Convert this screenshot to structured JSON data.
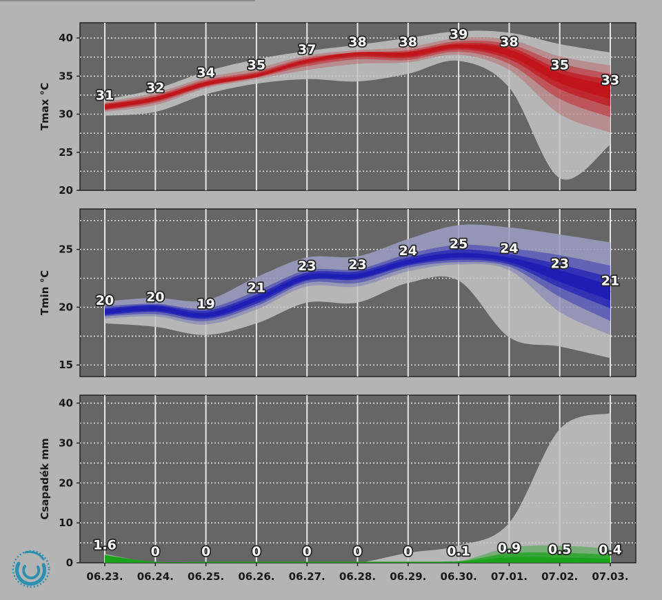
{
  "colors": {
    "background": "#b4b4b4",
    "panel": "#666666",
    "tmax": "#c0151b",
    "tmin": "#1e1eb4",
    "precip": "#1aa31a",
    "ensemble_spread": "#c4c4c4"
  },
  "logo": {
    "icon": "swirl-logo-icon",
    "color": "#2a8fb0"
  },
  "chart_data": [
    {
      "type": "area",
      "ylabel": "Tmax °C",
      "categories": [
        "06.23.",
        "06.24.",
        "06.25.",
        "06.26.",
        "06.27.",
        "06.28.",
        "06.29.",
        "06.30.",
        "07.01.",
        "07.02.",
        "07.03."
      ],
      "ylim": [
        20,
        42
      ],
      "yticks": [
        20,
        25,
        30,
        35,
        40
      ],
      "grid": true,
      "median": [
        31,
        32,
        34,
        35,
        37,
        38,
        38,
        39,
        38,
        35,
        33
      ],
      "labels": [
        "31",
        "32",
        "34",
        "35",
        "37",
        "38",
        "38",
        "39",
        "38",
        "35",
        "33"
      ],
      "bands": [
        {
          "low": [
            29.8,
            30.3,
            32.6,
            34.0,
            34.6,
            34.3,
            35.3,
            37.0,
            33.5,
            21.6,
            26.0
          ],
          "high": [
            31.9,
            33.3,
            35.6,
            37.2,
            38.3,
            39.1,
            40.0,
            40.9,
            40.7,
            39.2,
            38.1
          ]
        },
        {
          "low": [
            30.3,
            31.2,
            33.4,
            34.6,
            35.8,
            36.6,
            36.8,
            37.8,
            35.8,
            30.0,
            27.6
          ],
          "high": [
            31.6,
            32.8,
            34.8,
            36.0,
            37.7,
            38.4,
            38.8,
            40.0,
            39.8,
            37.6,
            36.4
          ]
        },
        {
          "low": [
            30.5,
            31.5,
            33.6,
            34.8,
            36.3,
            37.2,
            37.1,
            38.2,
            36.6,
            32.0,
            29.6
          ],
          "high": [
            31.4,
            32.5,
            34.5,
            35.6,
            37.4,
            38.1,
            38.4,
            39.6,
            39.2,
            36.7,
            35.3
          ]
        },
        {
          "low": [
            30.6,
            31.7,
            33.7,
            34.9,
            36.6,
            37.5,
            37.4,
            38.5,
            37.2,
            33.3,
            31.0
          ],
          "high": [
            31.3,
            32.3,
            34.3,
            35.4,
            37.2,
            37.9,
            38.2,
            39.3,
            38.8,
            35.9,
            34.5
          ]
        },
        {
          "low": [
            30.7,
            31.8,
            33.8,
            34.95,
            36.8,
            37.7,
            37.6,
            38.7,
            37.6,
            34.1,
            32.0
          ],
          "high": [
            31.2,
            32.2,
            34.2,
            35.2,
            37.1,
            37.8,
            38.0,
            39.1,
            38.5,
            35.4,
            33.8
          ]
        }
      ]
    },
    {
      "type": "area",
      "ylabel": "Tmin °C",
      "categories": [
        "06.23.",
        "06.24.",
        "06.25.",
        "06.26.",
        "06.27.",
        "06.28.",
        "06.29.",
        "06.30.",
        "07.01.",
        "07.02.",
        "07.03."
      ],
      "ylim": [
        14,
        28.5
      ],
      "yticks": [
        15,
        20,
        25
      ],
      "grid": true,
      "median": [
        19.6,
        19.9,
        19.3,
        20.7,
        22.6,
        22.7,
        23.9,
        24.5,
        24.1,
        22.8,
        21.3
      ],
      "labels": [
        "20",
        "20",
        "19",
        "21",
        "23",
        "23",
        "24",
        "25",
        "24",
        "23",
        "21"
      ],
      "bands": [
        {
          "low": [
            18.6,
            18.3,
            17.6,
            18.6,
            20.4,
            20.4,
            22.1,
            22.3,
            17.4,
            16.6,
            15.6
          ],
          "high": [
            20.5,
            20.8,
            20.6,
            22.6,
            24.3,
            24.4,
            25.9,
            27.1,
            26.9,
            26.3,
            25.6
          ]
        },
        {
          "low": [
            19.0,
            19.2,
            18.5,
            19.8,
            21.8,
            21.8,
            23.1,
            23.7,
            23.2,
            19.6,
            17.6
          ]
        },
        {
          "low": [
            19.2,
            19.4,
            18.8,
            20.1,
            22.1,
            22.1,
            23.4,
            23.9,
            23.5,
            20.9,
            18.8
          ],
          "high": [
            20.1,
            20.3,
            19.9,
            21.4,
            23.2,
            23.3,
            24.6,
            25.4,
            25.1,
            24.5,
            23.6
          ]
        },
        {
          "low": [
            19.3,
            19.6,
            19.0,
            20.3,
            22.3,
            22.4,
            23.6,
            24.1,
            23.7,
            21.7,
            19.9
          ],
          "high": [
            19.9,
            20.2,
            19.7,
            21.1,
            23.0,
            23.1,
            24.3,
            25.0,
            24.6,
            23.7,
            22.6
          ]
        },
        {
          "low": [
            19.4,
            19.7,
            19.1,
            20.5,
            22.4,
            22.5,
            23.7,
            24.3,
            23.9,
            22.2,
            20.6
          ],
          "high": [
            19.8,
            20.1,
            19.5,
            20.9,
            22.8,
            22.9,
            24.1,
            24.7,
            24.3,
            23.2,
            21.9
          ]
        }
      ]
    },
    {
      "type": "area",
      "ylabel": "Csapadék mm",
      "categories": [
        "06.23.",
        "06.24.",
        "06.25.",
        "06.26.",
        "06.27.",
        "06.28.",
        "06.29.",
        "06.30.",
        "07.01.",
        "07.02.",
        "07.03."
      ],
      "ylim": [
        0,
        42
      ],
      "yticks": [
        0,
        10,
        20,
        30,
        40
      ],
      "grid": true,
      "median": [
        1.6,
        0,
        0,
        0,
        0,
        0,
        0,
        0.1,
        0.9,
        0.5,
        0.4
      ],
      "labels": [
        "1.6",
        "0",
        "0",
        "0",
        "0",
        "0",
        "0",
        "0.1",
        "0.9",
        "0.5",
        "0.4"
      ],
      "bands": [
        {
          "low": [
            0,
            0,
            0,
            0,
            0,
            0,
            0,
            0,
            0,
            0,
            0
          ],
          "high": [
            2.2,
            0,
            0,
            0,
            0,
            0,
            2.5,
            4.3,
            10.0,
            33.5,
            37.5
          ]
        },
        {
          "low": [
            0,
            0,
            0,
            0,
            0,
            0,
            0,
            0,
            0,
            0,
            0
          ],
          "high": [
            2.1,
            0,
            0,
            0,
            0,
            0,
            0,
            0.4,
            3.8,
            4.3,
            3.5
          ]
        },
        {
          "low": [
            0,
            0,
            0,
            0,
            0,
            0,
            0,
            0,
            0,
            0,
            0
          ],
          "high": [
            1.9,
            0,
            0,
            0,
            0,
            0,
            0,
            0.3,
            2.4,
            2.5,
            2.0
          ]
        },
        {
          "low": [
            0,
            0,
            0,
            0,
            0,
            0,
            0,
            0,
            0,
            0,
            0
          ],
          "high": [
            1.6,
            0,
            0,
            0,
            0,
            0,
            0,
            0.2,
            1.4,
            1.3,
            1.0
          ]
        }
      ]
    }
  ]
}
